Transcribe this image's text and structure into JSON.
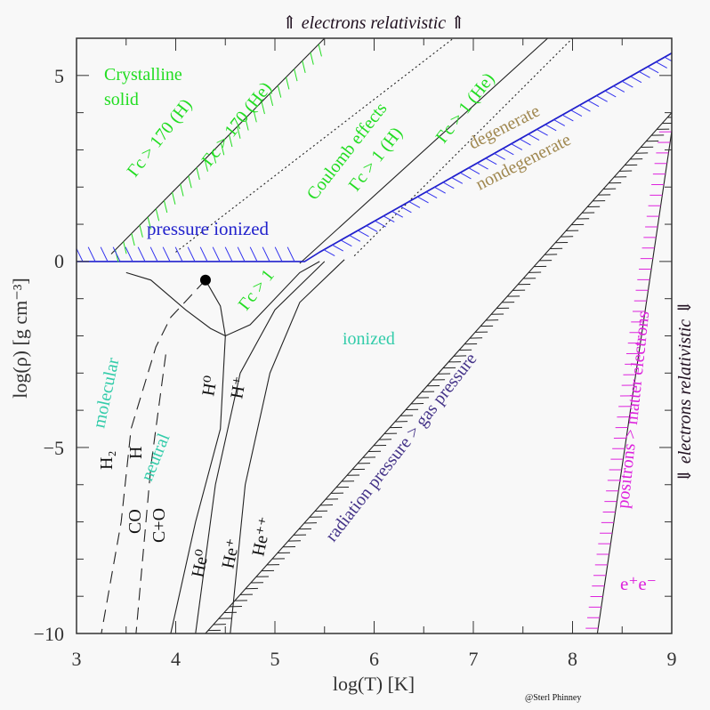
{
  "chart_data": {
    "type": "line",
    "title": "",
    "xlabel": "log(T)  [K]",
    "ylabel": "log(ρ)  [g cm⁻³]",
    "xlim": [
      3,
      9
    ],
    "ylim": [
      -10,
      6
    ],
    "xticks": [
      "3",
      "4",
      "5",
      "6",
      "7",
      "8",
      "9"
    ],
    "xtick_values": [
      3,
      4,
      5,
      6,
      7,
      8,
      9
    ],
    "yticks": [
      "−10",
      "−5",
      "0",
      "5"
    ],
    "ytick_values": [
      -10,
      -5,
      0,
      5
    ],
    "grid": false,
    "top_annotation": "⇑ electrons relativistic ⇑",
    "right_annotation": "⇓ electrons relativistic ⇓",
    "credit": "@Sterl Phinney",
    "colors": {
      "green": "#22dd22",
      "blue": "#2222cc",
      "hatch_blue": "#3333ee",
      "tan": "#a08850",
      "teal": "#33ccaa",
      "purple": "#443388",
      "magenta": "#dd22dd",
      "black": "#111111"
    },
    "series": [
      {
        "name": "gamma_170_H",
        "style": "solid",
        "hatch": "green",
        "points": [
          [
            3.35,
            0.2
          ],
          [
            5.5,
            6.0
          ]
        ]
      },
      {
        "name": "gamma_170_He",
        "style": "dotted",
        "points": [
          [
            4.0,
            0.25
          ],
          [
            6.8,
            6.0
          ]
        ]
      },
      {
        "name": "gamma_1_H",
        "style": "solid",
        "points": [
          [
            5.25,
            -0.05
          ],
          [
            7.75,
            6.0
          ]
        ]
      },
      {
        "name": "gamma_1_He",
        "style": "dotted",
        "points": [
          [
            5.8,
            0.15
          ],
          [
            8.0,
            6.0
          ]
        ]
      },
      {
        "name": "pressure_ionized",
        "style": "solid",
        "color": "blue",
        "hatch": "blue",
        "points": [
          [
            3.0,
            0.0
          ],
          [
            5.3,
            0.0
          ],
          [
            5.45,
            0.25
          ],
          [
            9.0,
            5.6
          ]
        ]
      },
      {
        "name": "degeneracy",
        "style": "solid",
        "color": "blue",
        "hatch": "blue",
        "points": [
          [
            5.45,
            0.25
          ],
          [
            9.0,
            5.6
          ]
        ]
      },
      {
        "name": "radiation_pressure",
        "style": "solid",
        "hatch": "black",
        "points": [
          [
            4.3,
            -10.0
          ],
          [
            9.0,
            4.0
          ]
        ]
      },
      {
        "name": "pair_production",
        "style": "solid",
        "hatch": "magenta",
        "points": [
          [
            8.25,
            -10.0
          ],
          [
            9.0,
            3.5
          ]
        ]
      },
      {
        "name": "gamma_1_curve",
        "style": "solid",
        "points": [
          [
            3.5,
            -0.3
          ],
          [
            3.75,
            -0.5
          ],
          [
            4.1,
            -1.3
          ],
          [
            4.35,
            -1.8
          ],
          [
            4.5,
            -2.0
          ],
          [
            4.75,
            -1.7
          ],
          [
            5.0,
            -1.0
          ],
          [
            5.25,
            -0.3
          ],
          [
            5.45,
            0.0
          ]
        ]
      },
      {
        "name": "H2_H_boundary",
        "style": "dashed",
        "points": [
          [
            4.3,
            -0.5
          ],
          [
            3.95,
            -1.5
          ],
          [
            3.8,
            -2.3
          ],
          [
            3.55,
            -4.5
          ],
          [
            3.45,
            -7.0
          ],
          [
            3.25,
            -10.0
          ]
        ]
      },
      {
        "name": "H_H+_boundary",
        "style": "solid",
        "points": [
          [
            4.3,
            -0.5
          ],
          [
            4.45,
            -1.2
          ],
          [
            4.5,
            -2.0
          ],
          [
            4.45,
            -4.5
          ],
          [
            4.2,
            -7.0
          ],
          [
            3.95,
            -10.0
          ]
        ]
      },
      {
        "name": "CO_C+O_boundary",
        "style": "dashed",
        "points": [
          [
            3.9,
            -2.5
          ],
          [
            3.75,
            -5.5
          ],
          [
            3.6,
            -10.0
          ]
        ]
      },
      {
        "name": "He0_He+_boundary",
        "style": "solid",
        "points": [
          [
            5.5,
            0.0
          ],
          [
            5.0,
            -1.3
          ],
          [
            4.65,
            -3.0
          ],
          [
            4.4,
            -6.0
          ],
          [
            4.2,
            -10.0
          ]
        ]
      },
      {
        "name": "He+_He++_boundary",
        "style": "solid",
        "points": [
          [
            5.7,
            0.05
          ],
          [
            5.25,
            -1.1
          ],
          [
            4.95,
            -3.0
          ],
          [
            4.7,
            -6.0
          ],
          [
            4.55,
            -10.0
          ]
        ]
      }
    ],
    "critical_point": {
      "x": 4.3,
      "y": -0.5
    },
    "annotations": [
      {
        "text": "Crystalline",
        "color": "green"
      },
      {
        "text": "solid",
        "color": "green"
      },
      {
        "text": "Γc > 170 (H)",
        "color": "green"
      },
      {
        "text": "Γc > 170 (He)",
        "color": "green"
      },
      {
        "text": "Coulomb effects",
        "color": "green"
      },
      {
        "text": "Γc > 1 (H)",
        "color": "green"
      },
      {
        "text": "Γc > 1 (He)",
        "color": "green"
      },
      {
        "text": "Γc > 1",
        "color": "green"
      },
      {
        "text": "degenerate",
        "color": "tan"
      },
      {
        "text": "nondegenerate",
        "color": "tan"
      },
      {
        "text": "pressure ionized",
        "color": "blue"
      },
      {
        "text": "ionized",
        "color": "teal"
      },
      {
        "text": "molecular",
        "color": "teal"
      },
      {
        "text": "neutral",
        "color": "teal"
      },
      {
        "text": "radiation pressure > gas pressure",
        "color": "purple"
      },
      {
        "text": "positrons > matter electrons",
        "color": "magenta"
      },
      {
        "text": "e⁺e⁻",
        "color": "magenta"
      },
      {
        "text": "H₂",
        "color": "black"
      },
      {
        "text": "H",
        "color": "black"
      },
      {
        "text": "H⁰",
        "color": "black"
      },
      {
        "text": "H⁺",
        "color": "black"
      },
      {
        "text": "CO",
        "color": "black"
      },
      {
        "text": "C+O",
        "color": "black"
      },
      {
        "text": "He⁰",
        "color": "black"
      },
      {
        "text": "He⁺",
        "color": "black"
      },
      {
        "text": "He⁺⁺",
        "color": "black"
      }
    ]
  }
}
